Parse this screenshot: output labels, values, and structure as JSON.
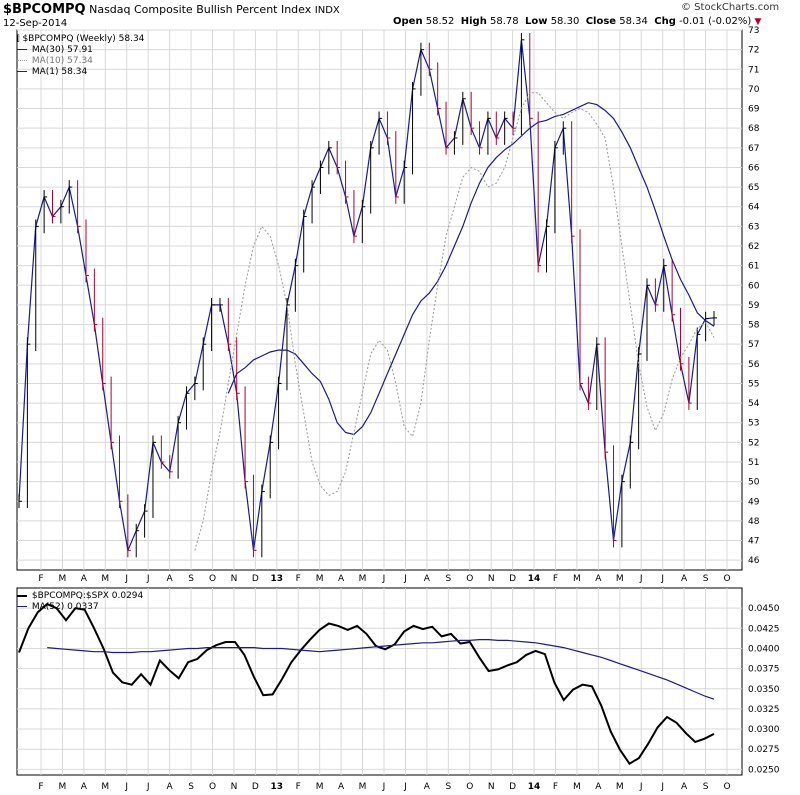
{
  "header": {
    "symbol": "$BPCOMPQ",
    "name": "Nasdaq Composite Bullish Percent Index",
    "exchange": "INDX",
    "date": "12-Sep-2014",
    "open_label": "Open",
    "open": "58.52",
    "high_label": "High",
    "high": "58.78",
    "low_label": "Low",
    "low": "58.30",
    "close_label": "Close",
    "close": "58.34",
    "chg_label": "Chg",
    "chg": "-0.01 (-0.02%)",
    "watermark": "© StockCharts.com"
  },
  "colors": {
    "price": "#000000",
    "down": "#b00030",
    "ma": "#1a1a8c",
    "ma10": "#999999",
    "grid": "#d8d8d8"
  },
  "chart_data": [
    {
      "type": "line",
      "legend": [
        {
          "label": "$BPCOMPQ (Weekly) 58.34",
          "style": "price"
        },
        {
          "label": "MA(30) 57.91",
          "style": "ma"
        },
        {
          "label": "MA(10) 57.34",
          "style": "ma10"
        },
        {
          "label": "MA(1) 58.34",
          "style": "ma"
        }
      ],
      "ylim": [
        45.5,
        73
      ],
      "yticks": [
        46,
        47,
        48,
        49,
        50,
        51,
        52,
        53,
        54,
        55,
        56,
        57,
        58,
        59,
        60,
        61,
        62,
        63,
        64,
        65,
        66,
        67,
        68,
        69,
        70,
        71,
        72,
        73
      ],
      "x_labels": [
        "F",
        "M",
        "A",
        "M",
        "J",
        "J",
        "A",
        "S",
        "O",
        "N",
        "D",
        "13",
        "F",
        "M",
        "A",
        "M",
        "J",
        "J",
        "A",
        "S",
        "O",
        "N",
        "D",
        "14",
        "F",
        "M",
        "A",
        "M",
        "J",
        "J",
        "A",
        "S",
        "O"
      ],
      "series": [
        {
          "name": "$BPCOMPQ",
          "values": [
            49,
            57,
            63,
            64.5,
            63.5,
            64,
            65,
            63,
            60.5,
            58,
            55,
            52,
            49,
            46.5,
            47.5,
            48.5,
            52,
            51,
            50.5,
            53,
            54.5,
            55,
            57,
            59,
            59,
            57,
            54.5,
            50,
            46.5,
            49.5,
            52,
            55,
            59,
            61,
            63.5,
            65,
            66,
            67,
            66,
            64.5,
            62.5,
            64,
            67,
            68.5,
            67.5,
            64.5,
            66,
            70,
            72,
            71,
            69,
            67,
            67.5,
            69.5,
            68,
            67,
            68.5,
            67.5,
            68.5,
            68,
            72.5,
            68.5,
            61,
            63,
            67,
            68,
            62.5,
            55,
            54,
            57,
            51.5,
            47,
            50,
            52,
            56.5,
            60,
            59,
            61,
            58.5,
            56,
            54,
            57.5,
            58.3,
            58.34
          ]
        },
        {
          "name": "MA(30)",
          "values": [
            null,
            null,
            null,
            null,
            null,
            null,
            null,
            null,
            null,
            null,
            null,
            54.5,
            55.5,
            55.8,
            56.2,
            56.4,
            56.6,
            56.7,
            56.7,
            56.5,
            56,
            55.5,
            55.1,
            54.2,
            53,
            52.5,
            52.4,
            52.8,
            53.5,
            54.5,
            55.5,
            56.5,
            57.5,
            58.5,
            59.2,
            59.6,
            60.2,
            61,
            62,
            63,
            64.2,
            65.2,
            66,
            66.5,
            66.9,
            67.2,
            67.6,
            68,
            68.3,
            68.4,
            68.6,
            68.7,
            68.9,
            69.1,
            69.3,
            69.2,
            68.9,
            68.5,
            67.8,
            67,
            66,
            65,
            63.8,
            62.5,
            61.3,
            60.3,
            59.5,
            58.6,
            58.2,
            57.91
          ]
        },
        {
          "name": "MA(10)",
          "values": [
            null,
            null,
            null,
            null,
            null,
            null,
            null,
            null,
            null,
            null,
            46.5,
            48,
            50.5,
            52.5,
            55,
            57.5,
            60,
            62,
            63,
            62.5,
            61,
            59,
            56,
            53.5,
            51,
            49.8,
            49.3,
            49.5,
            50.5,
            52.5,
            54.5,
            56.5,
            57.2,
            56.7,
            55,
            52.8,
            52.3,
            54,
            57.2,
            60,
            62.5,
            64,
            65.5,
            66,
            65.8,
            65,
            65.2,
            66,
            67.5,
            69,
            69.8,
            69.8,
            69.3,
            68.8,
            68.5,
            68.8,
            69,
            68.8,
            68.2,
            67.5,
            65,
            62,
            59,
            56,
            53.8,
            52.6,
            53.5,
            55.2,
            56.3,
            57,
            57.8,
            58.1,
            57.34
          ]
        }
      ]
    },
    {
      "type": "line",
      "legend": [
        {
          "label": "$BPCOMPQ:$SPX 0.0294",
          "style": "price"
        },
        {
          "label": "MA(52) 0.0337",
          "style": "ma"
        }
      ],
      "ylim": [
        0.0243,
        0.0475
      ],
      "yticks": [
        "0.0250",
        "0.0275",
        "0.0300",
        "0.0325",
        "0.0350",
        "0.0375",
        "0.0400",
        "0.0425",
        "0.0450"
      ],
      "x_labels": [
        "F",
        "M",
        "A",
        "M",
        "J",
        "J",
        "A",
        "S",
        "O",
        "N",
        "D",
        "13",
        "F",
        "M",
        "A",
        "M",
        "J",
        "J",
        "A",
        "S",
        "O",
        "N",
        "D",
        "14",
        "F",
        "M",
        "A",
        "M",
        "J",
        "J",
        "A",
        "S",
        "O"
      ],
      "series": [
        {
          "name": "$BPCOMPQ:$SPX",
          "values": [
            0.0395,
            0.0425,
            0.0445,
            0.0455,
            0.045,
            0.0435,
            0.045,
            0.0448,
            0.0425,
            0.04,
            0.037,
            0.0358,
            0.0355,
            0.0368,
            0.0355,
            0.0385,
            0.0373,
            0.0363,
            0.0383,
            0.0387,
            0.0398,
            0.0404,
            0.0408,
            0.0408,
            0.0392,
            0.0365,
            0.0342,
            0.0343,
            0.0362,
            0.0383,
            0.0398,
            0.0411,
            0.0423,
            0.0431,
            0.0428,
            0.0423,
            0.0428,
            0.0418,
            0.0403,
            0.0399,
            0.0405,
            0.0421,
            0.0428,
            0.0424,
            0.0427,
            0.0415,
            0.0418,
            0.0406,
            0.0408,
            0.0389,
            0.0372,
            0.0374,
            0.0379,
            0.0383,
            0.0392,
            0.0397,
            0.0393,
            0.0358,
            0.0336,
            0.0349,
            0.0355,
            0.0353,
            0.0329,
            0.0297,
            0.0274,
            0.0257,
            0.0264,
            0.0282,
            0.0302,
            0.0315,
            0.0308,
            0.0295,
            0.0284,
            0.0288,
            0.0294
          ]
        },
        {
          "name": "MA(52)",
          "values": [
            0.0401,
            0.04,
            0.0399,
            0.0398,
            0.0397,
            0.0396,
            0.0396,
            0.0395,
            0.0395,
            0.0395,
            0.0396,
            0.0396,
            0.0397,
            0.0398,
            0.0399,
            0.04,
            0.04,
            0.0401,
            0.0401,
            0.0401,
            0.0401,
            0.0401,
            0.0401,
            0.04,
            0.04,
            0.04,
            0.0399,
            0.0398,
            0.0397,
            0.0396,
            0.0397,
            0.0398,
            0.0399,
            0.04,
            0.0401,
            0.0402,
            0.0403,
            0.0404,
            0.0405,
            0.0406,
            0.0407,
            0.0407,
            0.0408,
            0.0409,
            0.041,
            0.041,
            0.0411,
            0.0411,
            0.041,
            0.041,
            0.0409,
            0.0408,
            0.0407,
            0.0405,
            0.0403,
            0.0401,
            0.0398,
            0.0395,
            0.0392,
            0.0389,
            0.0385,
            0.0381,
            0.0377,
            0.0373,
            0.0369,
            0.0365,
            0.0361,
            0.0356,
            0.0351,
            0.0346,
            0.0341,
            0.0337
          ]
        }
      ]
    }
  ]
}
